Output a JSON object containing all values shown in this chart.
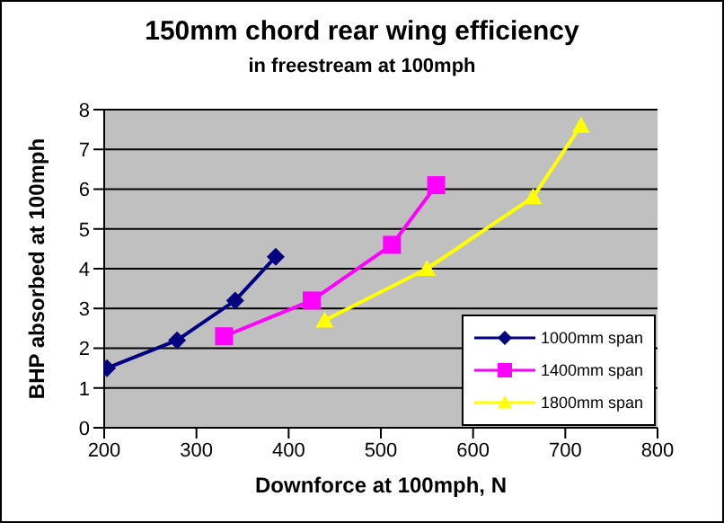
{
  "chart_data": {
    "type": "line",
    "title": "150mm chord rear wing efficiency",
    "subtitle": "in freestream at 100mph",
    "xlabel": "Downforce at 100mph, N",
    "ylabel": "BHP absorbed at 100mph",
    "series": [
      {
        "name": "1000mm span",
        "color": "#000080",
        "marker": "diamond",
        "x": [
          203,
          279,
          342,
          386
        ],
        "values": [
          1.5,
          2.2,
          3.2,
          4.3
        ]
      },
      {
        "name": "1400mm span",
        "color": "#ff00ff",
        "marker": "square",
        "x": [
          330,
          425,
          512,
          560
        ],
        "values": [
          2.3,
          3.2,
          4.6,
          6.1
        ]
      },
      {
        "name": "1800mm span",
        "color": "#ffff00",
        "marker": "triangle",
        "x": [
          439,
          550,
          665,
          717
        ],
        "values": [
          2.7,
          4.0,
          5.8,
          7.6
        ]
      }
    ],
    "xlim": [
      200,
      800
    ],
    "xticks": [
      200,
      300,
      400,
      500,
      600,
      700,
      800
    ],
    "ylim": [
      0,
      8
    ],
    "yticks": [
      0,
      1,
      2,
      3,
      4,
      5,
      6,
      7,
      8
    ],
    "grid": "y",
    "legend": "bottom right"
  }
}
